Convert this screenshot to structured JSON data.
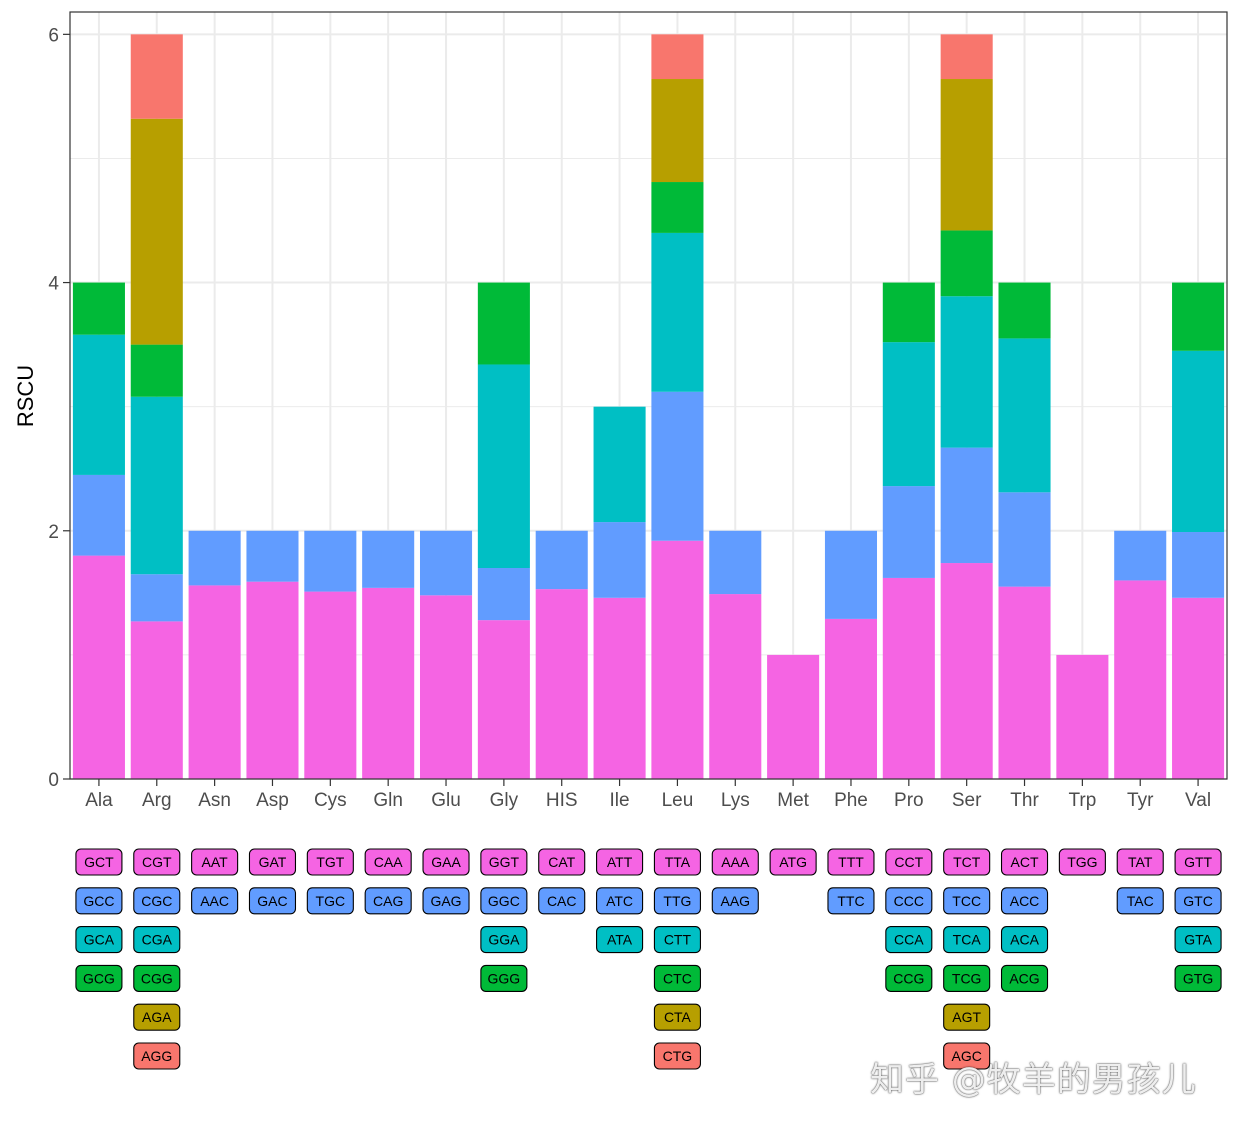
{
  "watermark": "知乎 @牧羊的男孩儿",
  "chart_data": {
    "type": "bar",
    "stacked": true,
    "ylabel": "RSCU",
    "xlabel": "",
    "ylim": [
      0,
      6.18
    ],
    "yticks": [
      0,
      2,
      4,
      6
    ],
    "grid": true,
    "legend": "none",
    "codon_table_below_axis": true,
    "colors": {
      "1": "#f564e3",
      "2": "#619cff",
      "3": "#00bfc4",
      "4": "#00ba38",
      "5": "#b79f00",
      "6": "#f8766d"
    },
    "categories": [
      "Ala",
      "Arg",
      "Asn",
      "Asp",
      "Cys",
      "Gln",
      "Glu",
      "Gly",
      "HIS",
      "Ile",
      "Leu",
      "Lys",
      "Met",
      "Phe",
      "Pro",
      "Ser",
      "Thr",
      "Trp",
      "Tyr",
      "Val"
    ],
    "stacks": [
      {
        "aa": "Ala",
        "codons": [
          "GCT",
          "GCC",
          "GCA",
          "GCG"
        ],
        "values": [
          1.8,
          0.65,
          1.13,
          0.42
        ]
      },
      {
        "aa": "Arg",
        "codons": [
          "CGT",
          "CGC",
          "CGA",
          "CGG",
          "AGA",
          "AGG"
        ],
        "values": [
          1.27,
          0.38,
          1.43,
          0.42,
          1.82,
          0.68
        ]
      },
      {
        "aa": "Asn",
        "codons": [
          "AAT",
          "AAC"
        ],
        "values": [
          1.56,
          0.44
        ]
      },
      {
        "aa": "Asp",
        "codons": [
          "GAT",
          "GAC"
        ],
        "values": [
          1.59,
          0.41
        ]
      },
      {
        "aa": "Cys",
        "codons": [
          "TGT",
          "TGC"
        ],
        "values": [
          1.51,
          0.49
        ]
      },
      {
        "aa": "Gln",
        "codons": [
          "CAA",
          "CAG"
        ],
        "values": [
          1.54,
          0.46
        ]
      },
      {
        "aa": "Glu",
        "codons": [
          "GAA",
          "GAG"
        ],
        "values": [
          1.48,
          0.52
        ]
      },
      {
        "aa": "Gly",
        "codons": [
          "GGT",
          "GGC",
          "GGA",
          "GGG"
        ],
        "values": [
          1.28,
          0.42,
          1.64,
          0.66
        ]
      },
      {
        "aa": "HIS",
        "codons": [
          "CAT",
          "CAC"
        ],
        "values": [
          1.53,
          0.47
        ]
      },
      {
        "aa": "Ile",
        "codons": [
          "ATT",
          "ATC",
          "ATA"
        ],
        "values": [
          1.46,
          0.61,
          0.93
        ]
      },
      {
        "aa": "Leu",
        "codons": [
          "TTA",
          "TTG",
          "CTT",
          "CTC",
          "CTA",
          "CTG"
        ],
        "values": [
          1.92,
          1.2,
          1.28,
          0.41,
          0.83,
          0.36
        ]
      },
      {
        "aa": "Lys",
        "codons": [
          "AAA",
          "AAG"
        ],
        "values": [
          1.49,
          0.51
        ]
      },
      {
        "aa": "Met",
        "codons": [
          "ATG"
        ],
        "values": [
          1.0
        ]
      },
      {
        "aa": "Phe",
        "codons": [
          "TTT",
          "TTC"
        ],
        "values": [
          1.29,
          0.71
        ]
      },
      {
        "aa": "Pro",
        "codons": [
          "CCT",
          "CCC",
          "CCA",
          "CCG"
        ],
        "values": [
          1.62,
          0.74,
          1.16,
          0.48
        ]
      },
      {
        "aa": "Ser",
        "codons": [
          "TCT",
          "TCC",
          "TCA",
          "TCG",
          "AGT",
          "AGC"
        ],
        "values": [
          1.74,
          0.93,
          1.22,
          0.53,
          1.22,
          0.36
        ]
      },
      {
        "aa": "Thr",
        "codons": [
          "ACT",
          "ACC",
          "ACA",
          "ACG"
        ],
        "values": [
          1.55,
          0.76,
          1.24,
          0.45
        ]
      },
      {
        "aa": "Trp",
        "codons": [
          "TGG"
        ],
        "values": [
          1.0
        ]
      },
      {
        "aa": "Tyr",
        "codons": [
          "TAT",
          "TAC"
        ],
        "values": [
          1.6,
          0.4
        ]
      },
      {
        "aa": "Val",
        "codons": [
          "GTT",
          "GTC",
          "GTA",
          "GTG"
        ],
        "values": [
          1.46,
          0.53,
          1.46,
          0.55
        ]
      }
    ]
  }
}
